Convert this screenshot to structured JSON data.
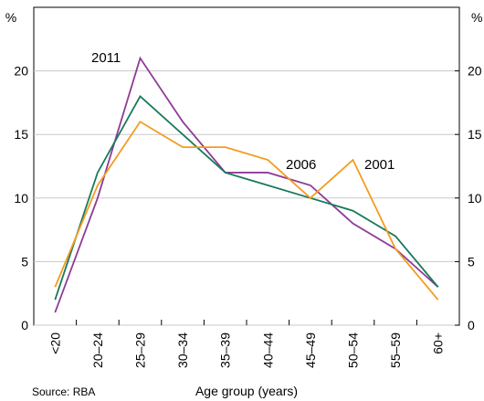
{
  "chart_data": {
    "type": "line",
    "y_unit": "%",
    "y2_unit": "%",
    "x_label": "Age group (years)",
    "source": "Source: RBA",
    "categories": [
      "<20",
      "20–24",
      "25–29",
      "30–34",
      "35–39",
      "40–44",
      "45–49",
      "50–54",
      "55–59",
      "60+"
    ],
    "series": [
      {
        "name": "2011",
        "color": "#8e3b97",
        "values": [
          1,
          10,
          21,
          16,
          12,
          12,
          11,
          8,
          6,
          3
        ]
      },
      {
        "name": "2006",
        "color": "#1a7a5a",
        "values": [
          2,
          12,
          18,
          15,
          12,
          11,
          10,
          9,
          7,
          3
        ]
      },
      {
        "name": "2001",
        "color": "#f39c1e",
        "values": [
          3,
          11,
          16,
          14,
          14,
          13,
          10,
          13,
          6,
          2
        ]
      }
    ],
    "ylim": [
      0,
      25
    ],
    "yticks": [
      0,
      5,
      10,
      15,
      20
    ],
    "y2lim": [
      0,
      25
    ],
    "y2ticks": [
      0,
      5,
      10,
      15,
      20
    ],
    "grid": true
  }
}
